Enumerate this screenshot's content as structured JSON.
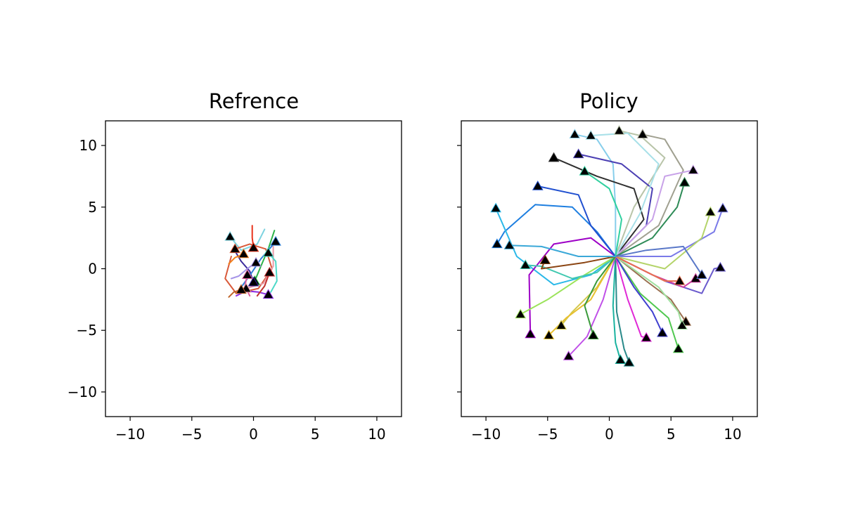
{
  "chart_data": [
    {
      "type": "line",
      "title": "Refrence",
      "xlabel": "",
      "ylabel": "",
      "xlim": [
        -12,
        12
      ],
      "ylim": [
        -12,
        12
      ],
      "xticks": [
        -10,
        -5,
        0,
        5,
        10
      ],
      "yticks": [
        -10,
        -5,
        0,
        5,
        10
      ],
      "xtick_labels": [
        "−10",
        "−5",
        "0",
        "5",
        "10"
      ],
      "ytick_labels": [
        "−10",
        "−5",
        "0",
        "5",
        "10"
      ],
      "grid": false,
      "marker_symbol": "black triangle at trajectory end",
      "series": [
        {
          "color": "#e8341c",
          "points": [
            [
              -0.1,
              3.5
            ],
            [
              -0.1,
              2.5
            ],
            [
              0.0,
              1.7
            ]
          ]
        },
        {
          "color": "#7dd3e0",
          "points": [
            [
              0.9,
              3.2
            ],
            [
              0.3,
              2.0
            ],
            [
              -1.0,
              1.5
            ],
            [
              -1.9,
              2.6
            ]
          ]
        },
        {
          "color": "#2db34a",
          "points": [
            [
              1.7,
              3.1
            ],
            [
              1.2,
              1.6
            ],
            [
              0.6,
              0.2
            ],
            [
              0.1,
              -1.0
            ]
          ]
        },
        {
          "color": "#d95a3a",
          "points": [
            [
              -1.8,
              1.0
            ],
            [
              -2.3,
              -0.8
            ],
            [
              -1.4,
              -2.0
            ],
            [
              0.4,
              -1.6
            ],
            [
              1.5,
              0.0
            ],
            [
              1.0,
              1.6
            ],
            [
              -0.3,
              2.0
            ],
            [
              -1.5,
              1.6
            ]
          ]
        },
        {
          "color": "#e89aa8",
          "points": [
            [
              1.6,
              1.8
            ],
            [
              1.6,
              0.2
            ],
            [
              0.8,
              -1.2
            ],
            [
              -0.6,
              -1.6
            ]
          ]
        },
        {
          "color": "#3a2a9c",
          "points": [
            [
              -1.6,
              1.6
            ],
            [
              -1.0,
              0.6
            ],
            [
              -0.3,
              -0.2
            ],
            [
              0.0,
              -1.1
            ]
          ]
        },
        {
          "color": "#a695e8",
          "points": [
            [
              -1.8,
              -0.8
            ],
            [
              -1.2,
              -0.6
            ],
            [
              -0.5,
              0.0
            ],
            [
              0.2,
              0.5
            ]
          ]
        },
        {
          "color": "#2e7fd6",
          "points": [
            [
              -1.0,
              -1.5
            ],
            [
              -0.2,
              -0.4
            ],
            [
              0.6,
              0.8
            ],
            [
              1.8,
              2.2
            ]
          ]
        },
        {
          "color": "#e05e9a",
          "points": [
            [
              -0.3,
              -2.2
            ],
            [
              -0.7,
              -1.4
            ],
            [
              -0.5,
              -0.5
            ]
          ]
        },
        {
          "color": "#c0652a",
          "points": [
            [
              -2.0,
              -2.3
            ],
            [
              -1.6,
              -1.9
            ],
            [
              -1.0,
              -1.7
            ]
          ]
        },
        {
          "color": "#8a2be2",
          "points": [
            [
              -1.4,
              -2.2
            ],
            [
              -0.6,
              -1.8
            ],
            [
              0.4,
              -1.9
            ],
            [
              1.2,
              -2.1
            ]
          ]
        },
        {
          "color": "#4dd9c8",
          "points": [
            [
              1.4,
              -1.9
            ],
            [
              1.9,
              -1.0
            ],
            [
              1.8,
              0.6
            ],
            [
              1.2,
              1.3
            ]
          ]
        },
        {
          "color": "#f07f1d",
          "points": [
            [
              -2.0,
              0.4
            ],
            [
              -1.5,
              0.9
            ],
            [
              -0.8,
              1.2
            ]
          ]
        },
        {
          "color": "#c03030",
          "points": [
            [
              0.3,
              -2.2
            ],
            [
              0.9,
              -1.4
            ],
            [
              1.3,
              -0.3
            ]
          ]
        }
      ]
    },
    {
      "type": "line",
      "title": "Policy",
      "xlabel": "",
      "ylabel": "",
      "xlim": [
        -12,
        12
      ],
      "ylim": [
        -12,
        12
      ],
      "xticks": [
        -10,
        -5,
        0,
        5,
        10
      ],
      "yticks": [
        -10,
        -5,
        0,
        5,
        10
      ],
      "xtick_labels": [
        "−10",
        "−5",
        "0",
        "5",
        "10"
      ],
      "ytick_labels": [
        "",
        "",
        "",
        "",
        ""
      ],
      "grid": false,
      "marker_symbol": "black triangle at trajectory end",
      "series": [
        {
          "color": "#1e7fe0",
          "points": [
            [
              0.5,
              1.0
            ],
            [
              -1.0,
              3.0
            ],
            [
              -3.0,
              5.0
            ],
            [
              -6.0,
              5.2
            ],
            [
              -8.5,
              3.0
            ],
            [
              -9.1,
              2.0
            ]
          ]
        },
        {
          "color": "#2ab8e8",
          "points": [
            [
              0.5,
              1.0
            ],
            [
              -1.5,
              -0.5
            ],
            [
              -4.5,
              -1.3
            ],
            [
              -7.5,
              1.0
            ],
            [
              -9.2,
              4.9
            ]
          ]
        },
        {
          "color": "#87ceeb",
          "points": [
            [
              0.5,
              1.0
            ],
            [
              0.5,
              5.0
            ],
            [
              0.3,
              8.5
            ],
            [
              -1.0,
              10.5
            ],
            [
              -2.8,
              10.9
            ]
          ]
        },
        {
          "color": "#b8c4a8",
          "points": [
            [
              0.5,
              1.0
            ],
            [
              2.0,
              5.0
            ],
            [
              4.5,
              9.0
            ],
            [
              2.5,
              10.8
            ],
            [
              0.8,
              11.2
            ]
          ]
        },
        {
          "color": "#a0a090",
          "points": [
            [
              0.5,
              1.0
            ],
            [
              4.0,
              3.5
            ],
            [
              6.0,
              8.0
            ],
            [
              4.5,
              10.5
            ],
            [
              2.7,
              10.9
            ]
          ]
        },
        {
          "color": "#4b3fb3",
          "points": [
            [
              0.5,
              1.0
            ],
            [
              3.0,
              3.5
            ],
            [
              3.5,
              6.5
            ],
            [
              1.0,
              8.5
            ],
            [
              -2.5,
              9.3
            ]
          ]
        },
        {
          "color": "#2f2f2f",
          "points": [
            [
              0.5,
              1.0
            ],
            [
              2.8,
              4.0
            ],
            [
              2.0,
              6.5
            ],
            [
              -1.0,
              7.5
            ],
            [
              -4.5,
              9.0
            ]
          ]
        },
        {
          "color": "#c8a2e8",
          "points": [
            [
              0.5,
              1.0
            ],
            [
              3.5,
              4.0
            ],
            [
              4.5,
              7.5
            ],
            [
              6.8,
              8.0
            ]
          ]
        },
        {
          "color": "#a8e0e8",
          "points": [
            [
              0.5,
              1.0
            ],
            [
              2.5,
              4.5
            ],
            [
              4.0,
              8.5
            ],
            [
              1.5,
              11.0
            ],
            [
              -1.5,
              10.8
            ]
          ]
        },
        {
          "color": "#7a7ae8",
          "points": [
            [
              0.5,
              1.0
            ],
            [
              5.0,
              1.0
            ],
            [
              8.5,
              3.0
            ],
            [
              9.2,
              4.9
            ]
          ]
        },
        {
          "color": "#b4d46a",
          "points": [
            [
              0.5,
              1.0
            ],
            [
              4.5,
              0.0
            ],
            [
              7.5,
              2.5
            ],
            [
              8.2,
              4.6
            ]
          ]
        },
        {
          "color": "#2e8b57",
          "points": [
            [
              0.5,
              1.0
            ],
            [
              3.5,
              2.5
            ],
            [
              5.5,
              5.0
            ],
            [
              6.1,
              7.0
            ]
          ]
        },
        {
          "color": "#6a5acd",
          "points": [
            [
              0.5,
              1.0
            ],
            [
              4.5,
              -1.0
            ],
            [
              7.5,
              -2.0
            ],
            [
              8.5,
              0.0
            ],
            [
              9.0,
              0.1
            ]
          ]
        },
        {
          "color": "#9d00c6",
          "points": [
            [
              0.5,
              1.0
            ],
            [
              -1.5,
              2.5
            ],
            [
              -4.5,
              2.0
            ],
            [
              -6.5,
              -0.5
            ],
            [
              -6.4,
              -5.3
            ]
          ]
        },
        {
          "color": "#9be35a",
          "points": [
            [
              0.5,
              1.0
            ],
            [
              -2.0,
              -0.5
            ],
            [
              -5.0,
              -2.5
            ],
            [
              -7.2,
              -3.7
            ]
          ]
        },
        {
          "color": "#d4c84a",
          "points": [
            [
              0.5,
              1.0
            ],
            [
              -1.0,
              -1.5
            ],
            [
              -3.0,
              -3.5
            ],
            [
              -3.9,
              -4.6
            ]
          ]
        },
        {
          "color": "#c050e8",
          "points": [
            [
              0.5,
              1.0
            ],
            [
              -0.5,
              -2.5
            ],
            [
              -1.8,
              -5.5
            ],
            [
              -3.3,
              -7.1
            ]
          ]
        },
        {
          "color": "#1bb3a0",
          "points": [
            [
              0.5,
              1.0
            ],
            [
              0.3,
              -3.0
            ],
            [
              0.5,
              -6.0
            ],
            [
              0.9,
              -7.4
            ]
          ]
        },
        {
          "color": "#2a8a8a",
          "points": [
            [
              0.5,
              1.0
            ],
            [
              0.6,
              -3.5
            ],
            [
              1.2,
              -6.5
            ],
            [
              1.6,
              -7.6
            ]
          ]
        },
        {
          "color": "#e02ad6",
          "points": [
            [
              0.5,
              1.0
            ],
            [
              1.5,
              -2.5
            ],
            [
              2.6,
              -5.5
            ],
            [
              3.0,
              -5.6
            ]
          ]
        },
        {
          "color": "#50c850",
          "points": [
            [
              0.5,
              1.0
            ],
            [
              2.5,
              -2.0
            ],
            [
              4.8,
              -4.0
            ],
            [
              5.6,
              -6.5
            ]
          ]
        },
        {
          "color": "#9a7050",
          "points": [
            [
              0.5,
              1.0
            ],
            [
              3.0,
              -1.0
            ],
            [
              5.0,
              -2.5
            ],
            [
              6.2,
              -4.3
            ]
          ]
        },
        {
          "color": "#4040d0",
          "points": [
            [
              0.5,
              1.0
            ],
            [
              2.0,
              -1.5
            ],
            [
              3.5,
              -3.5
            ],
            [
              4.3,
              -5.2
            ]
          ]
        },
        {
          "color": "#a0e0a0",
          "points": [
            [
              0.5,
              1.0
            ],
            [
              4.0,
              -1.5
            ],
            [
              5.6,
              -3.5
            ],
            [
              5.9,
              -4.6
            ]
          ]
        },
        {
          "color": "#d040a0",
          "points": [
            [
              0.5,
              1.0
            ],
            [
              3.5,
              -0.5
            ],
            [
              6.0,
              -1.5
            ],
            [
              7.0,
              -0.8
            ]
          ]
        },
        {
          "color": "#e8c030",
          "points": [
            [
              0.5,
              1.0
            ],
            [
              -1.5,
              -2.5
            ],
            [
              -3.5,
              -4.0
            ],
            [
              -4.9,
              -5.4
            ]
          ]
        },
        {
          "color": "#40c8b0",
          "points": [
            [
              0.5,
              1.0
            ],
            [
              -1.0,
              -0.3
            ],
            [
              -3.0,
              -0.8
            ],
            [
              -5.5,
              0.2
            ],
            [
              -6.8,
              0.3
            ]
          ]
        },
        {
          "color": "#2050d0",
          "points": [
            [
              0.5,
              1.0
            ],
            [
              -1.5,
              3.5
            ],
            [
              -2.5,
              6.0
            ],
            [
              -5.8,
              6.7
            ]
          ]
        },
        {
          "color": "#32d0a0",
          "points": [
            [
              0.5,
              1.0
            ],
            [
              1.0,
              4.0
            ],
            [
              0.0,
              6.5
            ],
            [
              -2.0,
              7.9
            ]
          ]
        },
        {
          "color": "#8b4513",
          "points": [
            [
              0.5,
              1.0
            ],
            [
              -2.0,
              0.5
            ],
            [
              -5.5,
              0.0
            ],
            [
              -5.2,
              0.7
            ]
          ]
        },
        {
          "color": "#3a9a3a",
          "points": [
            [
              0.5,
              1.0
            ],
            [
              -1.0,
              -1.0
            ],
            [
              -2.0,
              -3.0
            ],
            [
              -1.3,
              -5.4
            ]
          ]
        },
        {
          "color": "#e87050",
          "points": [
            [
              0.5,
              1.0
            ],
            [
              2.5,
              0.0
            ],
            [
              4.5,
              -1.0
            ],
            [
              5.7,
              -1.0
            ]
          ]
        },
        {
          "color": "#5a78c8",
          "points": [
            [
              0.5,
              1.0
            ],
            [
              3.0,
              1.5
            ],
            [
              6.0,
              1.8
            ],
            [
              7.5,
              -0.5
            ]
          ]
        },
        {
          "color": "#3aa8d8",
          "points": [
            [
              0.5,
              1.0
            ],
            [
              -2.5,
              1.0
            ],
            [
              -5.5,
              1.8
            ],
            [
              -8.1,
              1.9
            ]
          ]
        }
      ]
    }
  ]
}
